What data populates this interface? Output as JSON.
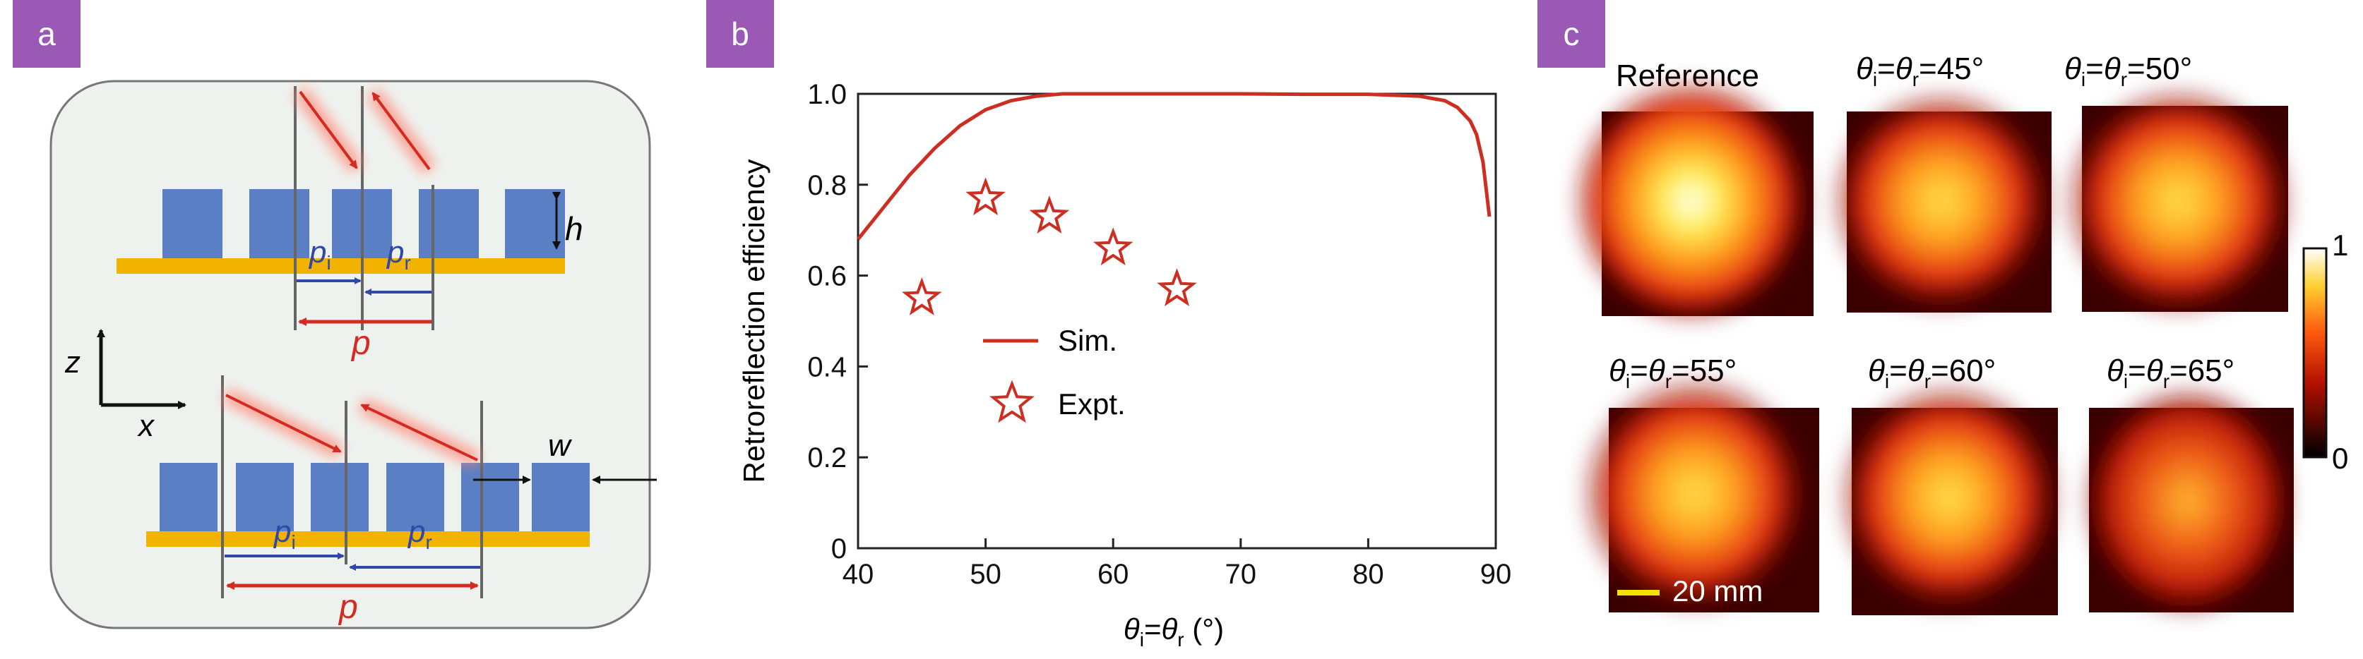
{
  "panels": {
    "a": "a",
    "b": "b",
    "c": "c"
  },
  "schematic": {
    "label_h": "h",
    "label_w": "w",
    "label_z": "z",
    "label_x": "x",
    "label_p": "p",
    "label_pi": "p",
    "sub_i": "i",
    "label_pr": "p",
    "sub_r": "r",
    "colors": {
      "background": "#eef2ef",
      "blocks": "#5b7fc4",
      "substrate": "#f2b300",
      "red": "#d42a20",
      "blue": "#2e4aa6"
    }
  },
  "chart_data": {
    "type": "line",
    "ylabel": "Retroreflection efficiency",
    "xlabel_theta": "θ",
    "xlabel_sub_i": "i",
    "xlabel_eq": "=",
    "xlabel_sub_r": "r",
    "xlabel_unit": "(°)",
    "xlim": [
      40,
      90
    ],
    "ylim": [
      0,
      1.0
    ],
    "xticks": [
      "40",
      "50",
      "60",
      "70",
      "80",
      "90"
    ],
    "yticks": [
      "0",
      "0.2",
      "0.4",
      "0.6",
      "0.8",
      "1.0"
    ],
    "series": [
      {
        "name": "Sim.",
        "kind": "line",
        "color": "#cc2f22",
        "x": [
          40,
          42,
          44,
          46,
          48,
          50,
          52,
          54,
          56,
          58,
          60,
          65,
          70,
          75,
          80,
          84,
          86,
          87,
          88,
          88.5,
          89,
          89.5
        ],
        "y": [
          0.68,
          0.75,
          0.82,
          0.88,
          0.93,
          0.965,
          0.985,
          0.995,
          1.0,
          1.0,
          1.0,
          1.0,
          1.0,
          0.999,
          0.999,
          0.995,
          0.985,
          0.97,
          0.94,
          0.91,
          0.85,
          0.73
        ]
      },
      {
        "name": "Expt.",
        "kind": "scatter",
        "marker": "star",
        "color": "#cc2f22",
        "x": [
          45,
          50,
          55,
          60,
          65
        ],
        "y": [
          0.55,
          0.77,
          0.73,
          0.66,
          0.57
        ]
      }
    ],
    "legend": {
      "position": "center-left",
      "sim": "Sim.",
      "expt": "Expt."
    },
    "grid": false
  },
  "images": {
    "titles": [
      {
        "kind": "plain",
        "text": "Reference"
      },
      {
        "kind": "angle",
        "theta": "θ",
        "sub_i": "i",
        "eq": "=",
        "sub_r": "r",
        "value": "=45°"
      },
      {
        "kind": "angle",
        "theta": "θ",
        "sub_i": "i",
        "eq": "=",
        "sub_r": "r",
        "value": "=50°"
      },
      {
        "kind": "angle",
        "theta": "θ",
        "sub_i": "i",
        "eq": "=",
        "sub_r": "r",
        "value": "=55°"
      },
      {
        "kind": "angle",
        "theta": "θ",
        "sub_i": "i",
        "eq": "=",
        "sub_r": "r",
        "value": "=60°"
      },
      {
        "kind": "angle",
        "theta": "θ",
        "sub_i": "i",
        "eq": "=",
        "sub_r": "r",
        "value": "=65°"
      }
    ],
    "scale_bar": "20 mm",
    "colorbar_max": "1",
    "colorbar_min": "0"
  }
}
